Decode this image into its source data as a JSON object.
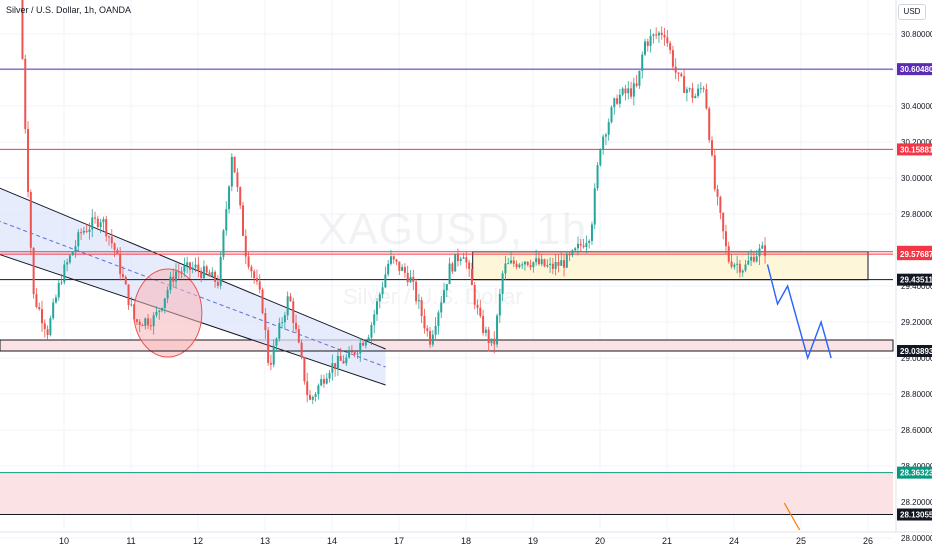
{
  "header": {
    "title": "Silver / U.S. Dollar, 1h, OANDA"
  },
  "currency_button": {
    "label": "USD"
  },
  "watermark": {
    "symbol": "XAGUSD, 1h",
    "name": "Silver / U.S. Dollar"
  },
  "colors": {
    "up": "#26a69a",
    "down": "#ef5350",
    "purple": "#5b2bb4",
    "red": "#f23645",
    "teal": "#089981",
    "navy": "#1e2a8a",
    "blue": "#2962ff",
    "orange": "#f57c00",
    "channel_fill": "#dde5fb",
    "zone_fill": "#fdf6d8",
    "pink_fill": "#fbe3e5"
  },
  "chart_data": {
    "type": "candlestick",
    "symbol": "XAGUSD",
    "timeframe": "1h",
    "y_range": [
      27.95,
      31.08
    ],
    "y_ticks": [
      "30.80000",
      "30.60000",
      "30.40000",
      "30.20000",
      "30.00000",
      "29.80000",
      "29.60000",
      "29.40000",
      "29.20000",
      "29.00000",
      "28.80000",
      "28.60000",
      "28.40000",
      "28.20000",
      "28.00000"
    ],
    "x_ticks": [
      {
        "label": "10",
        "day": 0
      },
      {
        "label": "11",
        "day": 1
      },
      {
        "label": "12",
        "day": 2
      },
      {
        "label": "13",
        "day": 3
      },
      {
        "label": "14",
        "day": 4
      },
      {
        "label": "17",
        "day": 5
      },
      {
        "label": "18",
        "day": 6
      },
      {
        "label": "19",
        "day": 7
      },
      {
        "label": "20",
        "day": 8
      },
      {
        "label": "21",
        "day": 9
      },
      {
        "label": "24",
        "day": 10
      },
      {
        "label": "25",
        "day": 11
      },
      {
        "label": "26",
        "day": 12
      }
    ],
    "price_path": [
      {
        "day": -0.62,
        "price": 31.05
      },
      {
        "day": -0.55,
        "price": 30.4
      },
      {
        "day": -0.42,
        "price": 29.35
      },
      {
        "day": -0.2,
        "price": 29.15
      },
      {
        "day": 0.0,
        "price": 29.45
      },
      {
        "day": 0.3,
        "price": 29.7
      },
      {
        "day": 0.6,
        "price": 29.78
      },
      {
        "day": 0.8,
        "price": 29.6
      },
      {
        "day": 1.1,
        "price": 29.2
      },
      {
        "day": 1.4,
        "price": 29.22
      },
      {
        "day": 1.7,
        "price": 29.48
      },
      {
        "day": 2.0,
        "price": 29.5
      },
      {
        "day": 2.35,
        "price": 29.42
      },
      {
        "day": 2.55,
        "price": 30.15
      },
      {
        "day": 2.75,
        "price": 29.6
      },
      {
        "day": 3.0,
        "price": 29.3
      },
      {
        "day": 3.1,
        "price": 28.95
      },
      {
        "day": 3.4,
        "price": 29.35
      },
      {
        "day": 3.7,
        "price": 28.75
      },
      {
        "day": 4.0,
        "price": 28.95
      },
      {
        "day": 4.3,
        "price": 29.0
      },
      {
        "day": 4.6,
        "price": 29.15
      },
      {
        "day": 4.9,
        "price": 29.55
      },
      {
        "day": 5.2,
        "price": 29.45
      },
      {
        "day": 5.5,
        "price": 29.1
      },
      {
        "day": 5.8,
        "price": 29.5
      },
      {
        "day": 6.0,
        "price": 29.6
      },
      {
        "day": 6.25,
        "price": 29.2
      },
      {
        "day": 6.45,
        "price": 29.05
      },
      {
        "day": 6.6,
        "price": 29.5
      },
      {
        "day": 6.9,
        "price": 29.55
      },
      {
        "day": 7.3,
        "price": 29.5
      },
      {
        "day": 7.6,
        "price": 29.55
      },
      {
        "day": 7.9,
        "price": 29.7
      },
      {
        "day": 8.05,
        "price": 30.2
      },
      {
        "day": 8.3,
        "price": 30.45
      },
      {
        "day": 8.6,
        "price": 30.5
      },
      {
        "day": 8.7,
        "price": 30.75
      },
      {
        "day": 9.0,
        "price": 30.82
      },
      {
        "day": 9.2,
        "price": 30.55
      },
      {
        "day": 9.45,
        "price": 30.45
      },
      {
        "day": 9.6,
        "price": 30.52
      },
      {
        "day": 9.75,
        "price": 29.95
      },
      {
        "day": 9.95,
        "price": 29.55
      },
      {
        "day": 10.2,
        "price": 29.5
      },
      {
        "day": 10.35,
        "price": 29.58
      },
      {
        "day": 10.5,
        "price": 29.6
      }
    ],
    "horizontal_levels": [
      {
        "label": "30.60480",
        "price": 30.6048,
        "color": "#5b2bb4"
      },
      {
        "label": "30.15881",
        "price": 30.15881,
        "color": "#f23645"
      },
      {
        "label": "29.59000",
        "price": 29.59,
        "color": "#f23645"
      },
      {
        "label": "29.57687",
        "price": 29.57687,
        "color": "#f23645"
      },
      {
        "label": "29.43511",
        "price": 29.43511,
        "color": "#131722"
      },
      {
        "label": "29.03893",
        "price": 29.03893,
        "color": "#131722"
      },
      {
        "label": "28.36323",
        "price": 28.36323,
        "color": "#089981"
      },
      {
        "label": "28.13055",
        "price": 28.13055,
        "color": "#131722"
      }
    ],
    "zones": [
      {
        "kind": "supply",
        "from_day": 6.1,
        "to_day": 12.0,
        "top": 29.59,
        "bottom": 29.43511
      },
      {
        "kind": "support",
        "from_day": -1.0,
        "to_day": 12.5,
        "top": 29.1,
        "bottom": 29.03893
      },
      {
        "kind": "target",
        "from_day": -1.0,
        "to_day": 12.5,
        "top": 28.36323,
        "bottom": 28.13055
      }
    ],
    "channel": {
      "upper": [
        {
          "day": -1.0,
          "price": 29.95
        },
        {
          "day": 4.8,
          "price": 29.05
        }
      ],
      "lower": [
        {
          "day": -1.0,
          "price": 29.58
        },
        {
          "day": 4.8,
          "price": 28.85
        }
      ]
    },
    "projection": [
      {
        "day": 10.5,
        "price": 29.52
      },
      {
        "day": 10.65,
        "price": 29.3
      },
      {
        "day": 10.8,
        "price": 29.4
      },
      {
        "day": 11.1,
        "price": 29.0
      },
      {
        "day": 11.3,
        "price": 29.2
      },
      {
        "day": 11.45,
        "price": 29.0
      }
    ],
    "grid": true,
    "legend": "none"
  }
}
